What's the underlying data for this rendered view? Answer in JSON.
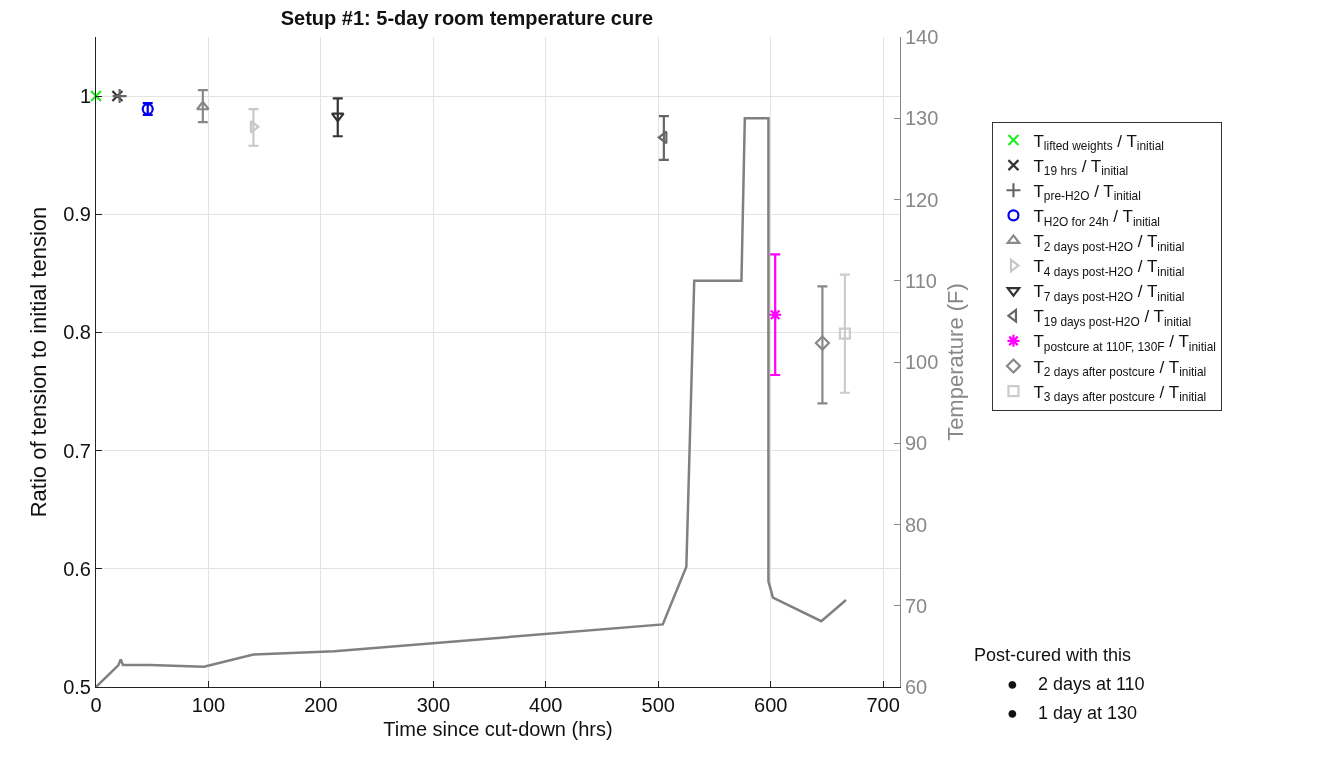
{
  "chart_data": {
    "type": "scatter",
    "title": "Setup #1: 5-day room temperature cure",
    "xlabel": "Time since cut-down (hrs)",
    "ylabel": "Ratio of tension to initial tension",
    "y2label": "Temperature (F)",
    "xlim": [
      0,
      715
    ],
    "xticks": [
      0,
      100,
      200,
      300,
      400,
      500,
      600,
      700
    ],
    "ylim": [
      0.5,
      1.05
    ],
    "yticks": [
      0.5,
      0.6,
      0.7,
      0.8,
      0.9,
      1
    ],
    "y2lim": [
      60,
      140
    ],
    "y2ticks": [
      60,
      70,
      80,
      90,
      100,
      110,
      120,
      130,
      140
    ],
    "grid": true,
    "legend": "right",
    "series": [
      {
        "name": "T$_{lifted weights}$ / T$_{initial}$",
        "color": "#22ee22",
        "marker": "x",
        "x": [
          0
        ],
        "values": [
          1
        ]
      },
      {
        "name": "T$_{19 hrs}$ / T$_{initial}$",
        "color": "#333333",
        "marker": "x",
        "x": [
          19
        ],
        "values": [
          1
        ]
      },
      {
        "name": "T$_{pre-H2O}$ / T$_{initial}$",
        "color": "#666666",
        "marker": "plus",
        "x": [
          21
        ],
        "values": [
          1
        ]
      },
      {
        "name": "T$_{H2O for 24h}$ / T$_{initial}$",
        "color": "#0000ee",
        "marker": "circle",
        "x": [
          46
        ],
        "values": [
          0.989
        ],
        "errors": [
          [
            0.984,
            0.994
          ]
        ]
      },
      {
        "name": "T$_{2 days post-H2O}$ / T$_{initial}$",
        "color": "#888888",
        "marker": "triangle-up",
        "x": [
          95
        ],
        "values": [
          0.991
        ],
        "errors": [
          [
            0.978,
            1.005
          ]
        ]
      },
      {
        "name": "T$_{4 days post-H2O}$ / T$_{initial}$",
        "color": "#c8c8c8",
        "marker": "triangle-right",
        "x": [
          140
        ],
        "values": [
          0.974
        ],
        "errors": [
          [
            0.958,
            0.989
          ]
        ]
      },
      {
        "name": "T$_{7 days post-H2O}$ / T$_{initial}$",
        "color": "#333333",
        "marker": "triangle-down",
        "x": [
          215
        ],
        "values": [
          0.983
        ],
        "errors": [
          [
            0.966,
            0.998
          ]
        ]
      },
      {
        "name": "T$_{19 days post-H2O}$ / T$_{initial}$",
        "color": "#666666",
        "marker": "triangle-left",
        "x": [
          505
        ],
        "values": [
          0.965
        ],
        "errors": [
          [
            0.946,
            0.983
          ]
        ]
      },
      {
        "name": "T$_{postcure at 110F, 130F}$ / T$_{initial}$",
        "color": "#ff00ff",
        "marker": "cross",
        "x": [
          604
        ],
        "values": [
          0.815
        ],
        "errors": [
          [
            0.764,
            0.866
          ]
        ]
      },
      {
        "name": "T$_{2 days after postcure}$ / T$_{initial}$",
        "color": "#888888",
        "marker": "diamond",
        "x": [
          646
        ],
        "values": [
          0.791
        ],
        "errors": [
          [
            0.74,
            0.839
          ]
        ]
      },
      {
        "name": "T$_{3 days after postcure}$ / T$_{initial}$",
        "color": "#cccccc",
        "marker": "square",
        "x": [
          666
        ],
        "values": [
          0.799
        ],
        "errors": [
          [
            0.749,
            0.849
          ]
        ]
      },
      {
        "type": "line",
        "axis": "y2",
        "color": "#808080",
        "marker": "none",
        "x": [
          0,
          20,
          22,
          24,
          48,
          96,
          140,
          212,
          504,
          525,
          532,
          574,
          577,
          598,
          598,
          602,
          645,
          667
        ],
        "values": [
          60,
          62.7,
          63.4,
          62.7,
          62.7,
          62.5,
          64,
          64.4,
          67.7,
          74.8,
          110,
          110,
          130,
          130,
          73,
          71,
          68.1,
          70.7
        ]
      }
    ],
    "annotations": [
      "Post-cured with this",
      "●    2 days at 110",
      "●    1 day at 130"
    ]
  }
}
